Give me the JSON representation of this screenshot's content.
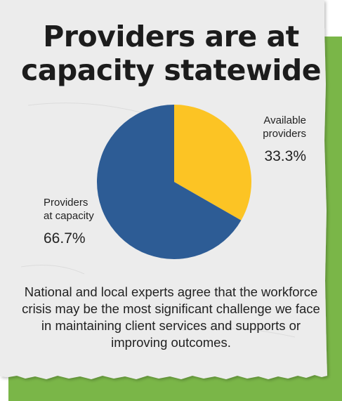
{
  "headline": {
    "line1": "Providers are at",
    "line2": "capacity statewide"
  },
  "colors": {
    "available": "#fcc424",
    "at_capacity": "#2d5c95",
    "background": "#7ab648",
    "paper": "#ececec"
  },
  "chart_data": {
    "type": "pie",
    "title": "Providers are at capacity statewide",
    "slices": [
      {
        "label_line1": "Available",
        "label_line2": "providers",
        "value": 33.3,
        "value_label": "33.3%"
      },
      {
        "label_line1": "Providers",
        "label_line2": "at capacity",
        "value": 66.7,
        "value_label": "66.7%"
      }
    ]
  },
  "caption": "National and local experts agree that the workforce crisis may be the most significant challenge we face in maintaining client services and supports or improving outcomes."
}
